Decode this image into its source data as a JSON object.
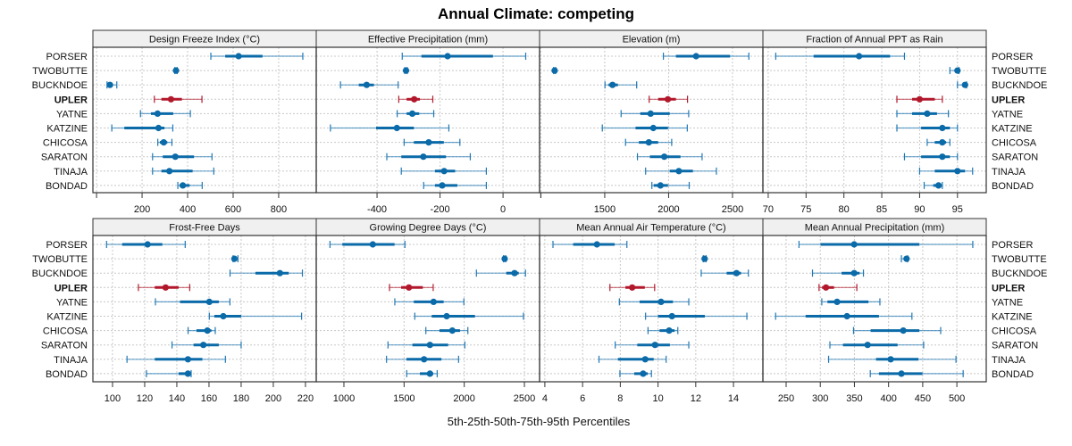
{
  "chart_data": {
    "type": "dot-whisker",
    "title": "Annual Climate: competing",
    "xlabel": "5th-25th-50th-75th-95th Percentiles",
    "rows": [
      "PORSER",
      "TWOBUTTE",
      "BUCKNDOE",
      "UPLER",
      "YATNE",
      "KATZINE",
      "CHICOSA",
      "SARATON",
      "TINAJA",
      "BONDAD"
    ],
    "highlight_row": "UPLER",
    "colors": {
      "default": "#1f77b4",
      "default_dark": "#0b6aa8",
      "highlight": "#b2182b"
    },
    "grid": true,
    "layout": "4 columns x 2 rows",
    "panels": [
      {
        "title": "Design Freeze Index (°C)",
        "xlim": [
          -16,
          965
        ],
        "ticks": [
          0,
          200,
          400,
          600,
          800
        ],
        "tick_labels": [
          "",
          "200",
          "400",
          "600",
          "800"
        ],
        "values": [
          [
            502,
            565,
            624,
            729,
            906
          ],
          [
            344,
            347,
            349,
            351,
            354
          ],
          [
            46,
            52,
            59,
            70,
            89
          ],
          [
            254,
            285,
            327,
            375,
            463
          ],
          [
            193,
            239,
            268,
            337,
            412
          ],
          [
            67,
            122,
            272,
            298,
            335
          ],
          [
            269,
            278,
            295,
            311,
            331
          ],
          [
            246,
            291,
            346,
            428,
            507
          ],
          [
            246,
            285,
            320,
            422,
            515
          ],
          [
            357,
            365,
            379,
            409,
            464
          ]
        ]
      },
      {
        "title": "Effective Precipitation (mm)",
        "xlim": [
          -593,
          116
        ],
        "ticks": [
          -400,
          -200,
          0,
          120
        ],
        "tick_labels": [
          "-400",
          "-200",
          "0",
          ""
        ],
        "values": [
          [
            -320,
            -259,
            -176,
            -32,
            72
          ],
          [
            -312,
            -310,
            -308,
            -306,
            -304
          ],
          [
            -516,
            -458,
            -433,
            -410,
            -333
          ],
          [
            -331,
            -306,
            -282,
            -264,
            -223
          ],
          [
            -336,
            -306,
            -288,
            -266,
            -220
          ],
          [
            -548,
            -403,
            -337,
            -283,
            -172
          ],
          [
            -314,
            -283,
            -236,
            -188,
            -137
          ],
          [
            -369,
            -323,
            -253,
            -181,
            -104
          ],
          [
            -323,
            -216,
            -187,
            -152,
            -53
          ],
          [
            -252,
            -216,
            -193,
            -145,
            -53
          ]
        ]
      },
      {
        "title": "Elevation (m)",
        "xlim": [
          990,
          2738
        ],
        "ticks": [
          1000,
          1500,
          2000,
          2500
        ],
        "tick_labels": [
          "",
          "1500",
          "2000",
          "2500"
        ],
        "values": [
          [
            1959,
            2057,
            2215,
            2481,
            2628
          ],
          [
            1100,
            1104,
            1108,
            1112,
            1116
          ],
          [
            1502,
            1530,
            1561,
            1603,
            1750
          ],
          [
            1848,
            1918,
            1994,
            2057,
            2148
          ],
          [
            1628,
            1778,
            1859,
            2009,
            2157
          ],
          [
            1481,
            1741,
            1880,
            1995,
            2146
          ],
          [
            1663,
            1767,
            1845,
            1918,
            2024
          ],
          [
            1756,
            1853,
            1966,
            2093,
            2262
          ],
          [
            1820,
            2009,
            2080,
            2190,
            2374
          ],
          [
            1869,
            1883,
            1936,
            1995,
            2161
          ]
        ]
      },
      {
        "title": "Fraction of Annual PPT as Rain",
        "xlim": [
          69.3,
          98.8
        ],
        "ticks": [
          70,
          75,
          80,
          85,
          90,
          95
        ],
        "tick_labels": [
          "70",
          "75",
          "80",
          "85",
          "90",
          "95"
        ],
        "values": [
          [
            71.0,
            76.0,
            82.0,
            86.1,
            88.0
          ],
          [
            94.0,
            94.6,
            95.0,
            95.1,
            95.2
          ],
          [
            95.0,
            95.6,
            96.0,
            96.1,
            96.2
          ],
          [
            87.0,
            89.0,
            90.0,
            92.0,
            93.0
          ],
          [
            87.0,
            89.0,
            91.0,
            92.3,
            93.8
          ],
          [
            87.0,
            90.2,
            93.0,
            94.0,
            95.0
          ],
          [
            91.0,
            92.0,
            93.0,
            93.5,
            94.0
          ],
          [
            88.0,
            90.2,
            93.0,
            94.0,
            95.0
          ],
          [
            90.0,
            92.0,
            95.0,
            96.0,
            97.0
          ],
          [
            90.6,
            91.8,
            92.5,
            92.9,
            93.0
          ]
        ]
      },
      {
        "title": "Frost-Free Days",
        "xlim": [
          87.8,
          226.7
        ],
        "ticks": [
          100,
          120,
          140,
          160,
          180,
          200,
          220
        ],
        "tick_labels": [
          "100",
          "120",
          "140",
          "160",
          "180",
          "200",
          "220"
        ],
        "values": [
          [
            96.3,
            106,
            121.8,
            131,
            145.2
          ],
          [
            175,
            175.5,
            175.8,
            176.5,
            178
          ],
          [
            173.1,
            188.9,
            204.1,
            209.6,
            218.1
          ],
          [
            116.1,
            126.3,
            133,
            141.1,
            148
          ],
          [
            126.7,
            142,
            160.2,
            166.1,
            173
          ],
          [
            160.2,
            163.3,
            168.9,
            180,
            217.6
          ],
          [
            147,
            152.2,
            159,
            161.5,
            163.9
          ],
          [
            137,
            150.4,
            156.5,
            166.1,
            180
          ],
          [
            109,
            126.3,
            146.9,
            155.9,
            170.2
          ],
          [
            121.1,
            141.1,
            146.9,
            148,
            148.9
          ]
        ]
      },
      {
        "title": "Growing Degree Days (°C)",
        "xlim": [
          770,
          2626
        ],
        "ticks": [
          1000,
          1500,
          2000,
          2500
        ],
        "tick_labels": [
          "1000",
          "1500",
          "2000",
          "2500"
        ],
        "values": [
          [
            884,
            987,
            1240,
            1421,
            1507
          ],
          [
            2326,
            2331,
            2336,
            2340,
            2345
          ],
          [
            2101,
            2349,
            2418,
            2453,
            2509
          ],
          [
            1379,
            1475,
            1540,
            1656,
            1742
          ],
          [
            1423,
            1581,
            1745,
            1829,
            1997
          ],
          [
            1589,
            1730,
            1854,
            2089,
            2492
          ],
          [
            1681,
            1794,
            1901,
            1965,
            2030
          ],
          [
            1366,
            1569,
            1715,
            1866,
            2005
          ],
          [
            1354,
            1520,
            1666,
            1810,
            1953
          ],
          [
            1522,
            1631,
            1715,
            1742,
            1775
          ]
        ]
      },
      {
        "title": "Mean Annual Air Temperature (°C)",
        "xlim": [
          3.72,
          15.56
        ],
        "ticks": [
          4,
          6,
          8,
          10,
          12,
          14
        ],
        "tick_labels": [
          "4",
          "6",
          "8",
          "10",
          "12",
          "14"
        ],
        "values": [
          [
            4.43,
            5.5,
            6.76,
            7.7,
            8.35
          ],
          [
            12.4,
            12.45,
            12.47,
            12.5,
            12.55
          ],
          [
            12.29,
            13.64,
            14.16,
            14.4,
            14.79
          ],
          [
            7.45,
            8.27,
            8.63,
            9.3,
            9.82
          ],
          [
            7.95,
            9.02,
            10.16,
            10.79,
            11.63
          ],
          [
            9.34,
            10.0,
            10.74,
            12.48,
            14.71
          ],
          [
            9.47,
            10.08,
            10.59,
            10.88,
            11.05
          ],
          [
            7.73,
            8.9,
            9.84,
            10.63,
            11.63
          ],
          [
            6.87,
            7.87,
            9.32,
            9.77,
            10.43
          ],
          [
            7.98,
            8.74,
            9.21,
            9.45,
            9.65
          ]
        ]
      },
      {
        "title": "Mean Annual Precipitation (mm)",
        "xlim": [
          216,
          543
        ],
        "ticks": [
          250,
          300,
          350,
          400,
          450,
          500
        ],
        "tick_labels": [
          "250",
          "300",
          "350",
          "400",
          "450",
          "500"
        ],
        "values": [
          [
            268.8,
            300.4,
            349.6,
            445.1,
            523.3
          ],
          [
            418.8,
            423,
            426.3,
            427,
            428
          ],
          [
            288.6,
            331.2,
            349.6,
            357.5,
            363.2
          ],
          [
            298.2,
            302.6,
            308.3,
            320.2,
            353.5
          ],
          [
            302.2,
            310.5,
            324.6,
            370.6,
            387.3
          ],
          [
            234.6,
            278.5,
            339.1,
            385.9,
            434.2
          ],
          [
            348.7,
            373.7,
            421.5,
            445.1,
            476.3
          ],
          [
            314.1,
            333.3,
            369.3,
            413.2,
            451.3
          ],
          [
            312.2,
            381.6,
            403.1,
            443.8,
            498.7
          ],
          [
            373.2,
            385.9,
            418.8,
            449.6,
            509.2
          ]
        ]
      }
    ]
  }
}
